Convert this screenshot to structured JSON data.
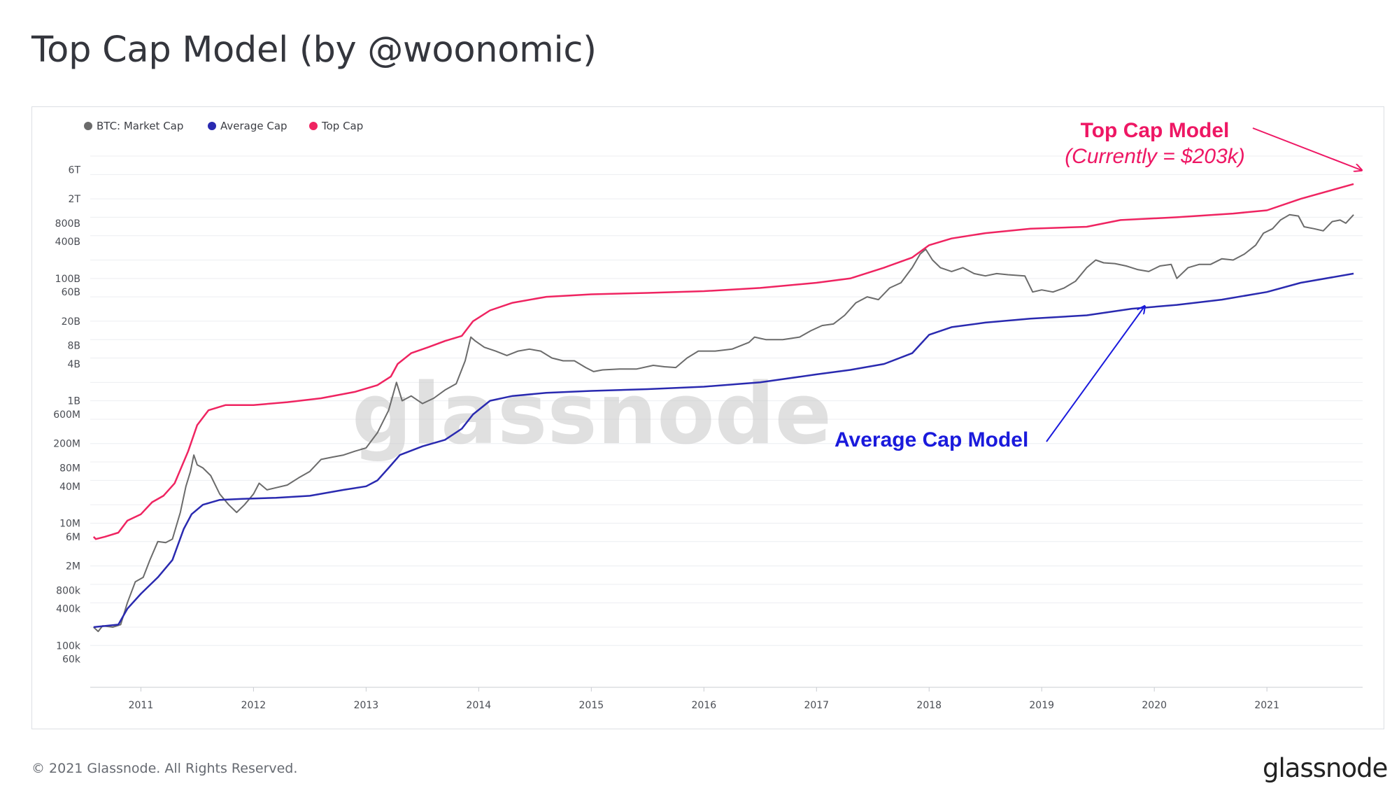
{
  "title": "Top Cap Model (by @woonomic)",
  "footer": {
    "copyright": "© 2021 Glassnode. All Rights Reserved.",
    "logo": "glassnode"
  },
  "watermark": "glassnode",
  "annotations": {
    "top_cap_label": "Top Cap Model",
    "top_cap_sub": "(Currently = $203k)",
    "avg_cap_label": "Average Cap Model"
  },
  "colors": {
    "market_cap": "#6b6b6b",
    "average_cap": "#2a2ab0",
    "top_cap": "#ef2461",
    "top_annotation": "#ee1764",
    "avg_annotation": "#1a1adc"
  },
  "chart_data": {
    "type": "line",
    "y_scale": "log",
    "ylim": [
      30000,
      10000000000000
    ],
    "xlim": [
      2010.55,
      2021.85
    ],
    "grid": true,
    "legend_position": "top-left",
    "y_ticks": [
      {
        "v": 60000,
        "label": "60k"
      },
      {
        "v": 100000,
        "label": "100k"
      },
      {
        "v": 400000,
        "label": "400k"
      },
      {
        "v": 800000,
        "label": "800k"
      },
      {
        "v": 2000000,
        "label": "2M"
      },
      {
        "v": 6000000,
        "label": "6M"
      },
      {
        "v": 10000000,
        "label": "10M"
      },
      {
        "v": 40000000,
        "label": "40M"
      },
      {
        "v": 80000000,
        "label": "80M"
      },
      {
        "v": 200000000,
        "label": "200M"
      },
      {
        "v": 600000000,
        "label": "600M"
      },
      {
        "v": 1000000000,
        "label": "1B"
      },
      {
        "v": 4000000000,
        "label": "4B"
      },
      {
        "v": 8000000000,
        "label": "8B"
      },
      {
        "v": 20000000000,
        "label": "20B"
      },
      {
        "v": 60000000000,
        "label": "60B"
      },
      {
        "v": 100000000000,
        "label": "100B"
      },
      {
        "v": 400000000000,
        "label": "400B"
      },
      {
        "v": 800000000000,
        "label": "800B"
      },
      {
        "v": 2000000000000,
        "label": "2T"
      },
      {
        "v": 6000000000000,
        "label": "6T"
      }
    ],
    "x_ticks": [
      {
        "v": 2011,
        "label": "2011"
      },
      {
        "v": 2012,
        "label": "2012"
      },
      {
        "v": 2013,
        "label": "2013"
      },
      {
        "v": 2014,
        "label": "2014"
      },
      {
        "v": 2015,
        "label": "2015"
      },
      {
        "v": 2016,
        "label": "2016"
      },
      {
        "v": 2017,
        "label": "2017"
      },
      {
        "v": 2018,
        "label": "2018"
      },
      {
        "v": 2019,
        "label": "2019"
      },
      {
        "v": 2020,
        "label": "2020"
      },
      {
        "v": 2021,
        "label": "2021"
      }
    ],
    "series": [
      {
        "name": "BTC: Market Cap",
        "color": "#6b6b6b",
        "points": [
          [
            2010.58,
            200000
          ],
          [
            2010.62,
            170000
          ],
          [
            2010.66,
            210000
          ],
          [
            2010.75,
            200000
          ],
          [
            2010.82,
            220000
          ],
          [
            2010.88,
            500000
          ],
          [
            2010.95,
            1100000
          ],
          [
            2011.02,
            1300000
          ],
          [
            2011.08,
            2500000
          ],
          [
            2011.15,
            5000000
          ],
          [
            2011.22,
            4800000
          ],
          [
            2011.28,
            5500000
          ],
          [
            2011.35,
            15000000
          ],
          [
            2011.4,
            40000000
          ],
          [
            2011.44,
            70000000
          ],
          [
            2011.47,
            130000000
          ],
          [
            2011.5,
            90000000
          ],
          [
            2011.55,
            80000000
          ],
          [
            2011.62,
            60000000
          ],
          [
            2011.7,
            30000000
          ],
          [
            2011.78,
            20000000
          ],
          [
            2011.85,
            15000000
          ],
          [
            2011.92,
            20000000
          ],
          [
            2012.0,
            30000000
          ],
          [
            2012.05,
            45000000
          ],
          [
            2012.12,
            35000000
          ],
          [
            2012.2,
            38000000
          ],
          [
            2012.3,
            42000000
          ],
          [
            2012.4,
            55000000
          ],
          [
            2012.5,
            70000000
          ],
          [
            2012.6,
            110000000
          ],
          [
            2012.7,
            120000000
          ],
          [
            2012.8,
            130000000
          ],
          [
            2012.9,
            150000000
          ],
          [
            2013.0,
            170000000
          ],
          [
            2013.1,
            300000000
          ],
          [
            2013.2,
            700000000
          ],
          [
            2013.27,
            2000000000
          ],
          [
            2013.32,
            1000000000
          ],
          [
            2013.4,
            1200000000
          ],
          [
            2013.5,
            900000000
          ],
          [
            2013.6,
            1100000000
          ],
          [
            2013.7,
            1500000000
          ],
          [
            2013.8,
            1900000000
          ],
          [
            2013.88,
            4500000000
          ],
          [
            2013.93,
            11000000000
          ],
          [
            2013.97,
            9500000000
          ],
          [
            2014.05,
            7500000000
          ],
          [
            2014.15,
            6500000000
          ],
          [
            2014.25,
            5500000000
          ],
          [
            2014.35,
            6500000000
          ],
          [
            2014.45,
            7000000000
          ],
          [
            2014.55,
            6500000000
          ],
          [
            2014.65,
            5000000000
          ],
          [
            2014.75,
            4500000000
          ],
          [
            2014.85,
            4500000000
          ],
          [
            2014.95,
            3500000000
          ],
          [
            2015.02,
            3000000000
          ],
          [
            2015.1,
            3200000000
          ],
          [
            2015.25,
            3300000000
          ],
          [
            2015.4,
            3300000000
          ],
          [
            2015.55,
            3800000000
          ],
          [
            2015.65,
            3600000000
          ],
          [
            2015.75,
            3500000000
          ],
          [
            2015.85,
            5000000000
          ],
          [
            2015.95,
            6500000000
          ],
          [
            2016.1,
            6500000000
          ],
          [
            2016.25,
            7000000000
          ],
          [
            2016.4,
            9000000000
          ],
          [
            2016.45,
            11000000000
          ],
          [
            2016.55,
            10000000000
          ],
          [
            2016.7,
            10000000000
          ],
          [
            2016.85,
            11000000000
          ],
          [
            2016.95,
            14000000000
          ],
          [
            2017.05,
            17000000000
          ],
          [
            2017.15,
            18000000000
          ],
          [
            2017.25,
            25000000000
          ],
          [
            2017.35,
            40000000000
          ],
          [
            2017.45,
            50000000000
          ],
          [
            2017.55,
            45000000000
          ],
          [
            2017.65,
            70000000000
          ],
          [
            2017.75,
            85000000000
          ],
          [
            2017.85,
            150000000000
          ],
          [
            2017.92,
            250000000000
          ],
          [
            2017.97,
            300000000000
          ],
          [
            2018.03,
            200000000000
          ],
          [
            2018.1,
            150000000000
          ],
          [
            2018.2,
            130000000000
          ],
          [
            2018.3,
            150000000000
          ],
          [
            2018.4,
            120000000000
          ],
          [
            2018.5,
            110000000000
          ],
          [
            2018.6,
            120000000000
          ],
          [
            2018.7,
            115000000000
          ],
          [
            2018.85,
            110000000000
          ],
          [
            2018.92,
            60000000000
          ],
          [
            2019.0,
            65000000000
          ],
          [
            2019.1,
            60000000000
          ],
          [
            2019.2,
            70000000000
          ],
          [
            2019.3,
            90000000000
          ],
          [
            2019.4,
            150000000000
          ],
          [
            2019.48,
            200000000000
          ],
          [
            2019.55,
            180000000000
          ],
          [
            2019.65,
            175000000000
          ],
          [
            2019.75,
            160000000000
          ],
          [
            2019.85,
            140000000000
          ],
          [
            2019.95,
            130000000000
          ],
          [
            2020.05,
            160000000000
          ],
          [
            2020.15,
            170000000000
          ],
          [
            2020.2,
            100000000000
          ],
          [
            2020.3,
            150000000000
          ],
          [
            2020.4,
            170000000000
          ],
          [
            2020.5,
            170000000000
          ],
          [
            2020.6,
            210000000000
          ],
          [
            2020.7,
            200000000000
          ],
          [
            2020.8,
            250000000000
          ],
          [
            2020.9,
            350000000000
          ],
          [
            2020.97,
            550000000000
          ],
          [
            2021.05,
            650000000000
          ],
          [
            2021.12,
            900000000000
          ],
          [
            2021.2,
            1100000000000
          ],
          [
            2021.28,
            1050000000000
          ],
          [
            2021.33,
            700000000000
          ],
          [
            2021.42,
            650000000000
          ],
          [
            2021.5,
            600000000000
          ],
          [
            2021.58,
            850000000000
          ],
          [
            2021.65,
            900000000000
          ],
          [
            2021.7,
            800000000000
          ],
          [
            2021.77,
            1100000000000
          ]
        ]
      },
      {
        "name": "Average Cap",
        "color": "#2a2ab0",
        "points": [
          [
            2010.58,
            200000
          ],
          [
            2010.8,
            220000
          ],
          [
            2010.88,
            400000
          ],
          [
            2011.0,
            700000
          ],
          [
            2011.15,
            1300000
          ],
          [
            2011.28,
            2500000
          ],
          [
            2011.38,
            8000000
          ],
          [
            2011.45,
            14000000
          ],
          [
            2011.55,
            20000000
          ],
          [
            2011.7,
            24000000
          ],
          [
            2011.9,
            25000000
          ],
          [
            2012.2,
            26000000
          ],
          [
            2012.5,
            28000000
          ],
          [
            2012.8,
            35000000
          ],
          [
            2013.0,
            40000000
          ],
          [
            2013.1,
            50000000
          ],
          [
            2013.2,
            80000000
          ],
          [
            2013.3,
            130000000
          ],
          [
            2013.5,
            180000000
          ],
          [
            2013.7,
            230000000
          ],
          [
            2013.85,
            350000000
          ],
          [
            2013.95,
            600000000
          ],
          [
            2014.1,
            1000000000
          ],
          [
            2014.3,
            1200000000
          ],
          [
            2014.6,
            1350000000
          ],
          [
            2015.0,
            1450000000
          ],
          [
            2015.5,
            1550000000
          ],
          [
            2016.0,
            1700000000
          ],
          [
            2016.5,
            2000000000
          ],
          [
            2017.0,
            2700000000
          ],
          [
            2017.3,
            3200000000
          ],
          [
            2017.6,
            4000000000
          ],
          [
            2017.85,
            6000000000
          ],
          [
            2018.0,
            12000000000
          ],
          [
            2018.2,
            16000000000
          ],
          [
            2018.5,
            19000000000
          ],
          [
            2018.9,
            22000000000
          ],
          [
            2019.4,
            25000000000
          ],
          [
            2019.8,
            32000000000
          ],
          [
            2020.2,
            37000000000
          ],
          [
            2020.6,
            45000000000
          ],
          [
            2021.0,
            60000000000
          ],
          [
            2021.3,
            85000000000
          ],
          [
            2021.77,
            120000000000
          ]
        ]
      },
      {
        "name": "Top Cap",
        "color": "#ef2461",
        "points": [
          [
            2010.58,
            6000000
          ],
          [
            2010.6,
            5500000
          ],
          [
            2010.68,
            6000000
          ],
          [
            2010.8,
            7000000
          ],
          [
            2010.88,
            11000000
          ],
          [
            2011.0,
            14000000
          ],
          [
            2011.1,
            22000000
          ],
          [
            2011.2,
            28000000
          ],
          [
            2011.3,
            45000000
          ],
          [
            2011.42,
            150000000
          ],
          [
            2011.5,
            400000000
          ],
          [
            2011.6,
            700000000
          ],
          [
            2011.75,
            850000000
          ],
          [
            2012.0,
            850000000
          ],
          [
            2012.3,
            950000000
          ],
          [
            2012.6,
            1100000000
          ],
          [
            2012.9,
            1400000000
          ],
          [
            2013.1,
            1800000000
          ],
          [
            2013.22,
            2500000000
          ],
          [
            2013.28,
            4000000000
          ],
          [
            2013.4,
            6000000000
          ],
          [
            2013.55,
            7500000000
          ],
          [
            2013.7,
            9500000000
          ],
          [
            2013.85,
            11500000000
          ],
          [
            2013.95,
            20000000000
          ],
          [
            2014.1,
            30000000000
          ],
          [
            2014.3,
            40000000000
          ],
          [
            2014.6,
            50000000000
          ],
          [
            2015.0,
            55000000000
          ],
          [
            2015.5,
            58000000000
          ],
          [
            2016.0,
            62000000000
          ],
          [
            2016.5,
            70000000000
          ],
          [
            2017.0,
            85000000000
          ],
          [
            2017.3,
            100000000000
          ],
          [
            2017.6,
            150000000000
          ],
          [
            2017.85,
            220000000000
          ],
          [
            2018.0,
            350000000000
          ],
          [
            2018.2,
            450000000000
          ],
          [
            2018.5,
            550000000000
          ],
          [
            2018.9,
            650000000000
          ],
          [
            2019.4,
            700000000000
          ],
          [
            2019.7,
            900000000000
          ],
          [
            2020.2,
            1000000000000
          ],
          [
            2020.7,
            1150000000000
          ],
          [
            2021.0,
            1300000000000
          ],
          [
            2021.3,
            2000000000000
          ],
          [
            2021.77,
            3500000000000
          ]
        ]
      }
    ]
  }
}
